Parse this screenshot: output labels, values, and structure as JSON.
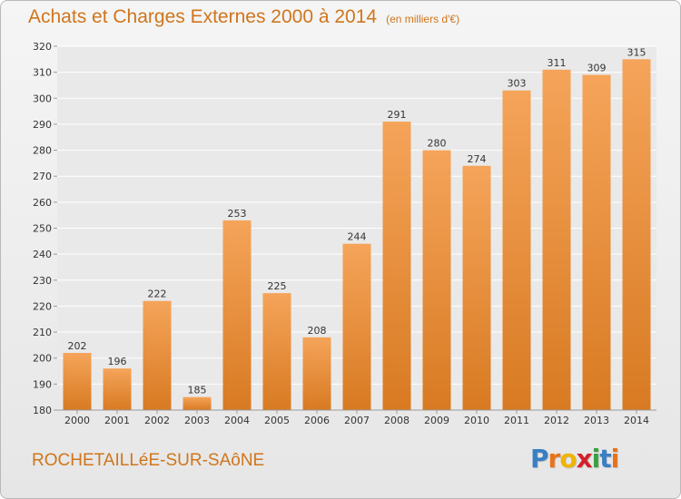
{
  "header": {
    "title": "Achats et Charges Externes 2000 à 2014",
    "subtitle": "(en milliers d'€)"
  },
  "footer": {
    "commune": "ROCHETAILLéE-SUR-SAôNE",
    "logo_letters": [
      "P",
      "r",
      "o",
      "x",
      "i",
      "t",
      "i"
    ],
    "logo_colors": [
      "#3a7fc4",
      "#e8731a",
      "#f0b400",
      "#d4202a",
      "#3aa042",
      "#3a7fc4",
      "#e8731a"
    ]
  },
  "colors": {
    "accent": "#d0751c",
    "bar_top": "#f5a45a",
    "bar_bottom": "#d87a22",
    "grid": "#ffffff"
  },
  "chart_data": {
    "type": "bar",
    "title": "Achats et Charges Externes 2000 à 2014",
    "subtitle": "(en milliers d'€)",
    "categories": [
      "2000",
      "2001",
      "2002",
      "2003",
      "2004",
      "2005",
      "2006",
      "2007",
      "2008",
      "2009",
      "2010",
      "2011",
      "2012",
      "2013",
      "2014"
    ],
    "values": [
      202,
      196,
      222,
      185,
      253,
      225,
      208,
      244,
      291,
      280,
      274,
      303,
      311,
      309,
      315
    ],
    "ylim": [
      180,
      320
    ],
    "yticks": [
      180,
      190,
      200,
      210,
      220,
      230,
      240,
      250,
      260,
      270,
      280,
      290,
      300,
      310,
      320
    ],
    "xlabel": "",
    "ylabel": "",
    "grid": true
  }
}
